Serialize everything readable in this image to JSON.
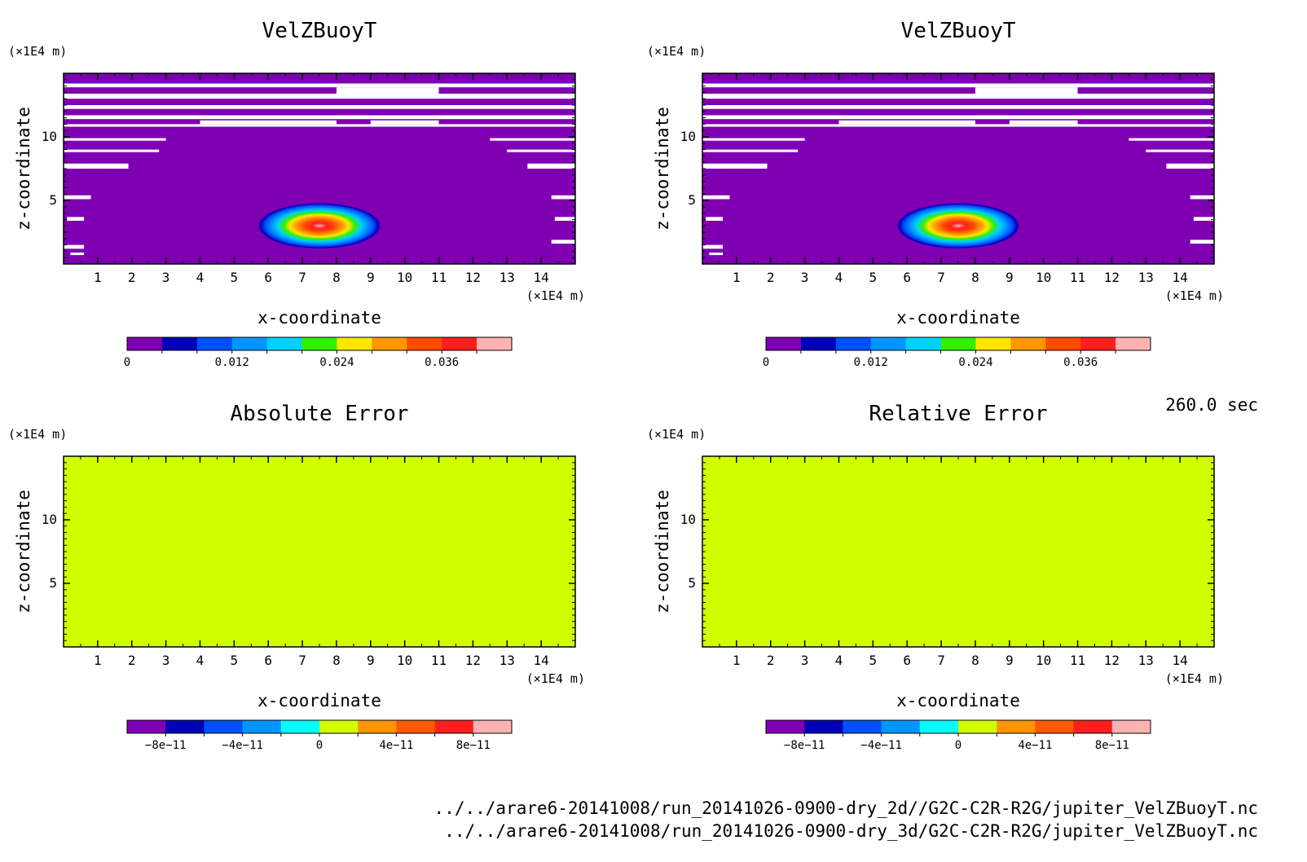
{
  "time_label": "260.0 sec",
  "files": [
    "../../arare6-20141008/run_20141026-0900-dry_2d//G2C-C2R-R2G/jupiter_VelZBuoyT.nc",
    "../../arare6-20141008/run_20141026-0900-dry_3d/G2C-C2R-R2G/jupiter_VelZBuoyT.nc"
  ],
  "chart_data": [
    {
      "type": "heatmap",
      "title": "VelZBuoyT",
      "xlabel": "x-coordinate",
      "ylabel": "z-coordinate",
      "x_unit": "(×1E4 m)",
      "y_unit": "(×1E4 m)",
      "xlim": [
        0,
        15
      ],
      "ylim": [
        0,
        15
      ],
      "x_ticks": [
        "1",
        "2",
        "3",
        "4",
        "5",
        "6",
        "7",
        "8",
        "9",
        "10",
        "11",
        "12",
        "13",
        "14"
      ],
      "y_ticks": [
        "5",
        "10"
      ],
      "background_color": "#7f00b2",
      "bubble": {
        "center": [
          7.5,
          3.0
        ],
        "radius": [
          1.8,
          1.8
        ],
        "peak": 0.04
      },
      "colorbar": {
        "colors": [
          "#7f00b2",
          "#0000b8",
          "#0050ff",
          "#0096ff",
          "#00d2ff",
          "#32f000",
          "#ffe600",
          "#ff9600",
          "#ff4b00",
          "#ff1e1e",
          "#ffb2b2"
        ],
        "labels": [
          {
            "value": "0",
            "index": 0
          },
          {
            "value": "0.012",
            "index": 3
          },
          {
            "value": "0.024",
            "index": 6
          },
          {
            "value": "0.036",
            "index": 9
          }
        ]
      }
    },
    {
      "type": "heatmap",
      "title": "VelZBuoyT",
      "xlabel": "x-coordinate",
      "ylabel": "z-coordinate",
      "x_unit": "(×1E4 m)",
      "y_unit": "(×1E4 m)",
      "xlim": [
        0,
        15
      ],
      "ylim": [
        0,
        15
      ],
      "x_ticks": [
        "1",
        "2",
        "3",
        "4",
        "5",
        "6",
        "7",
        "8",
        "9",
        "10",
        "11",
        "12",
        "13",
        "14"
      ],
      "y_ticks": [
        "5",
        "10"
      ],
      "background_color": "#7f00b2",
      "bubble": {
        "center": [
          7.5,
          3.0
        ],
        "radius": [
          1.8,
          1.8
        ],
        "peak": 0.04
      },
      "colorbar": {
        "colors": [
          "#7f00b2",
          "#0000b8",
          "#0050ff",
          "#0096ff",
          "#00d2ff",
          "#32f000",
          "#ffe600",
          "#ff9600",
          "#ff4b00",
          "#ff1e1e",
          "#ffb2b2"
        ],
        "labels": [
          {
            "value": "0",
            "index": 0
          },
          {
            "value": "0.012",
            "index": 3
          },
          {
            "value": "0.024",
            "index": 6
          },
          {
            "value": "0.036",
            "index": 9
          }
        ]
      }
    },
    {
      "type": "heatmap",
      "title": "Absolute Error",
      "xlabel": "x-coordinate",
      "ylabel": "z-coordinate",
      "x_unit": "(×1E4 m)",
      "y_unit": "(×1E4 m)",
      "xlim": [
        0,
        15
      ],
      "ylim": [
        0,
        15
      ],
      "x_ticks": [
        "1",
        "2",
        "3",
        "4",
        "5",
        "6",
        "7",
        "8",
        "9",
        "10",
        "11",
        "12",
        "13",
        "14"
      ],
      "y_ticks": [
        "5",
        "10"
      ],
      "fill_color": "#d2ff00",
      "values": "uniform 0",
      "colorbar": {
        "colors": [
          "#7f00b2",
          "#0000b8",
          "#0050ff",
          "#0096ff",
          "#00ffff",
          "#d2ff00",
          "#ff9600",
          "#ff5a00",
          "#ff1e1e",
          "#ffb2b2"
        ],
        "labels": [
          {
            "value": "−8e−11",
            "index": 1
          },
          {
            "value": "−4e−11",
            "index": 3
          },
          {
            "value": "0",
            "index": 5
          },
          {
            "value": "4e−11",
            "index": 7
          },
          {
            "value": "8e−11",
            "index": 9
          }
        ]
      }
    },
    {
      "type": "heatmap",
      "title": "Relative Error",
      "xlabel": "x-coordinate",
      "ylabel": "z-coordinate",
      "x_unit": "(×1E4 m)",
      "y_unit": "(×1E4 m)",
      "xlim": [
        0,
        15
      ],
      "ylim": [
        0,
        15
      ],
      "x_ticks": [
        "1",
        "2",
        "3",
        "4",
        "5",
        "6",
        "7",
        "8",
        "9",
        "10",
        "11",
        "12",
        "13",
        "14"
      ],
      "y_ticks": [
        "5",
        "10"
      ],
      "fill_color": "#d2ff00",
      "values": "uniform 0",
      "colorbar": {
        "colors": [
          "#7f00b2",
          "#0000b8",
          "#0050ff",
          "#0096ff",
          "#00ffff",
          "#d2ff00",
          "#ff9600",
          "#ff5a00",
          "#ff1e1e",
          "#ffb2b2"
        ],
        "labels": [
          {
            "value": "−8e−11",
            "index": 1
          },
          {
            "value": "−4e−11",
            "index": 3
          },
          {
            "value": "0",
            "index": 5
          },
          {
            "value": "4e−11",
            "index": 7
          },
          {
            "value": "8e−11",
            "index": 9
          }
        ]
      }
    }
  ]
}
